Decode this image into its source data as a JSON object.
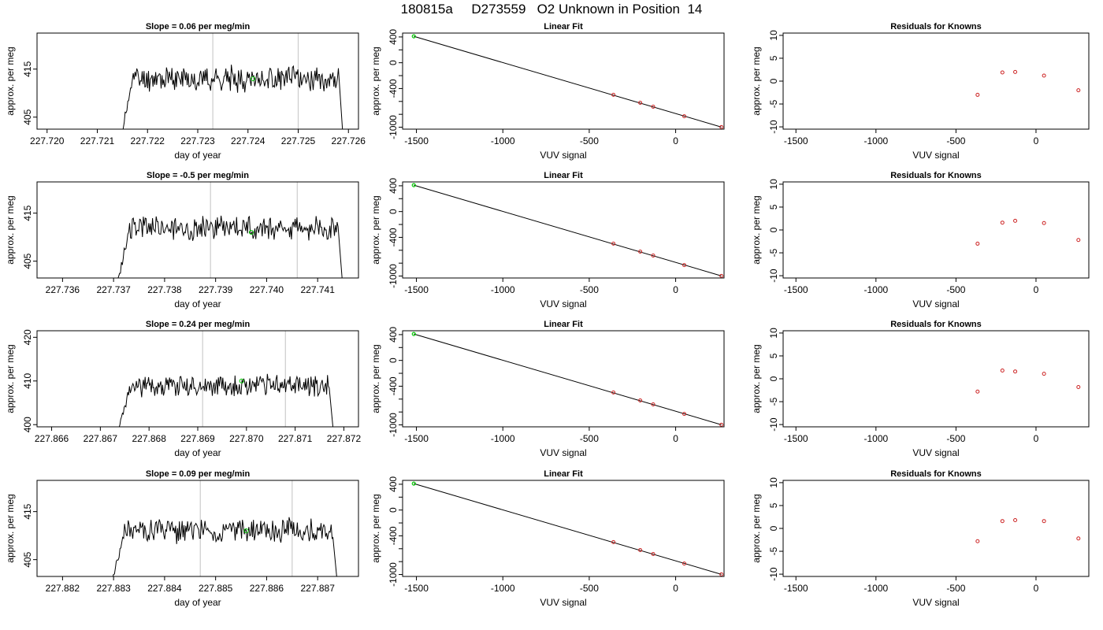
{
  "figure_title": "180815a     D273559   O2 Unknown in Position  14",
  "colors": {
    "trace": "#000000",
    "unknown_point": "#00cc00",
    "known_point": "#cc2222",
    "run_marker": "#cccccc",
    "fit_line": "#000000"
  },
  "chart_data": [
    {
      "type": "line",
      "row": 0,
      "title": "Slope =  0.06  per meg/min",
      "xlabel": "day of year",
      "ylabel": "approx. per meg",
      "xlim": [
        227.7198,
        227.7262
      ],
      "ylim": [
        402.5,
        422.5
      ],
      "xticks": [
        "227.720",
        "227.721",
        "227.722",
        "227.723",
        "227.724",
        "227.725",
        "227.726"
      ],
      "yticks": [
        "405",
        "415"
      ],
      "x_start": 227.7214,
      "x_end": 227.7259,
      "plateau_start": 227.7215,
      "plateau_end": 227.7258,
      "mean": 413,
      "amplitude": 2.2,
      "seed": 11,
      "markers": [
        227.7233,
        227.725
      ],
      "unknown_point": [
        227.7241,
        413
      ]
    },
    {
      "type": "line",
      "row": 0,
      "title": "Linear Fit",
      "xlabel": "VUV signal",
      "ylabel": "approx. per meg",
      "xlim": [
        -1580,
        280
      ],
      "ylim": [
        -1030,
        460
      ],
      "xticks": [
        "-1500",
        "-1000",
        "-500",
        "0"
      ],
      "yticks": [
        "-1000",
        "-800",
        "-600",
        "-400",
        "-200",
        "0",
        "200",
        "400"
      ],
      "yticks_labeled": [
        "-1000",
        "-400",
        "0",
        "400"
      ],
      "fit": {
        "x": [
          -1515,
          265
        ],
        "y": [
          410,
          -998
        ]
      },
      "unknown_point": [
        -1515,
        410
      ],
      "knowns": {
        "x": [
          -360,
          -205,
          -130,
          50,
          265
        ],
        "y": [
          -497,
          -621,
          -682,
          -830,
          -998
        ]
      }
    },
    {
      "type": "scatter",
      "row": 0,
      "title": "Residuals for Knowns",
      "xlabel": "VUV signal",
      "ylabel": "approx. per meg",
      "xlim": [
        -1580,
        330
      ],
      "ylim": [
        -10.5,
        10.5
      ],
      "xticks": [
        "-1500",
        "-1000",
        "-500",
        "0"
      ],
      "yticks": [
        "-10",
        "-5",
        "0",
        "5",
        "10"
      ],
      "x": [
        -365,
        -210,
        -130,
        50,
        265
      ],
      "y": [
        -3,
        1.9,
        2,
        1.2,
        -2
      ]
    },
    {
      "type": "line",
      "row": 1,
      "title": "Slope =  -0.5  per meg/min",
      "xlabel": "day of year",
      "ylabel": "approx. per meg",
      "xlim": [
        227.7355,
        227.7418
      ],
      "ylim": [
        401.5,
        421.5
      ],
      "xticks": [
        "227.736",
        "227.737",
        "227.738",
        "227.739",
        "227.740",
        "227.741"
      ],
      "yticks": [
        "405",
        "415"
      ],
      "x_start": 227.737,
      "x_end": 227.7415,
      "plateau_start": 227.7371,
      "plateau_end": 227.7414,
      "mean": 412,
      "amplitude": 2.2,
      "seed": 23,
      "markers": [
        227.7389,
        227.7406
      ],
      "unknown_point": [
        227.7397,
        411
      ]
    },
    {
      "type": "line",
      "row": 1,
      "title": "Linear Fit",
      "xlabel": "VUV signal",
      "ylabel": "approx. per meg",
      "xlim": [
        -1580,
        280
      ],
      "ylim": [
        -1030,
        460
      ],
      "xticks": [
        "-1500",
        "-1000",
        "-500",
        "0"
      ],
      "yticks": [
        "-1000",
        "-800",
        "-600",
        "-400",
        "-200",
        "0",
        "200",
        "400"
      ],
      "yticks_labeled": [
        "-1000",
        "-400",
        "0",
        "400"
      ],
      "fit": {
        "x": [
          -1515,
          265
        ],
        "y": [
          410,
          -998
        ]
      },
      "unknown_point": [
        -1515,
        410
      ],
      "knowns": {
        "x": [
          -360,
          -205,
          -130,
          50,
          265
        ],
        "y": [
          -497,
          -621,
          -682,
          -830,
          -998
        ]
      }
    },
    {
      "type": "scatter",
      "row": 1,
      "title": "Residuals for Knowns",
      "xlabel": "VUV signal",
      "ylabel": "approx. per meg",
      "xlim": [
        -1580,
        330
      ],
      "ylim": [
        -10.5,
        10.5
      ],
      "xticks": [
        "-1500",
        "-1000",
        "-500",
        "0"
      ],
      "yticks": [
        "-10",
        "-5",
        "0",
        "5",
        "10"
      ],
      "x": [
        -365,
        -210,
        -130,
        50,
        265
      ],
      "y": [
        -3,
        1.6,
        2,
        1.5,
        -2.2
      ]
    },
    {
      "type": "line",
      "row": 2,
      "title": "Slope =  0.24  per meg/min",
      "xlabel": "day of year",
      "ylabel": "approx. per meg",
      "xlim": [
        227.8657,
        227.8723
      ],
      "ylim": [
        399.5,
        421.5
      ],
      "xticks": [
        "227.866",
        "227.867",
        "227.868",
        "227.869",
        "227.870",
        "227.871",
        "227.872"
      ],
      "yticks": [
        "400",
        "410",
        "420"
      ],
      "x_start": 227.8673,
      "x_end": 227.8718,
      "plateau_start": 227.8674,
      "plateau_end": 227.8717,
      "mean": 409,
      "amplitude": 2.2,
      "seed": 37,
      "markers": [
        227.8691,
        227.8708
      ],
      "unknown_point": [
        227.8699,
        410
      ]
    },
    {
      "type": "line",
      "row": 2,
      "title": "Linear Fit",
      "xlabel": "VUV signal",
      "ylabel": "approx. per meg",
      "xlim": [
        -1580,
        280
      ],
      "ylim": [
        -1030,
        460
      ],
      "xticks": [
        "-1500",
        "-1000",
        "-500",
        "0"
      ],
      "yticks": [
        "-1000",
        "-800",
        "-600",
        "-400",
        "-200",
        "0",
        "200",
        "400"
      ],
      "yticks_labeled": [
        "-1000",
        "-400",
        "0",
        "400"
      ],
      "fit": {
        "x": [
          -1515,
          265
        ],
        "y": [
          410,
          -998
        ]
      },
      "unknown_point": [
        -1515,
        410
      ],
      "knowns": {
        "x": [
          -360,
          -205,
          -130,
          50,
          265
        ],
        "y": [
          -497,
          -621,
          -682,
          -830,
          -998
        ]
      }
    },
    {
      "type": "scatter",
      "row": 2,
      "title": "Residuals for Knowns",
      "xlabel": "VUV signal",
      "ylabel": "approx. per meg",
      "xlim": [
        -1580,
        330
      ],
      "ylim": [
        -10.5,
        10.5
      ],
      "xticks": [
        "-1500",
        "-1000",
        "-500",
        "0"
      ],
      "yticks": [
        "-10",
        "-5",
        "0",
        "5",
        "10"
      ],
      "x": [
        -365,
        -210,
        -130,
        50,
        265
      ],
      "y": [
        -2.8,
        1.8,
        1.6,
        1.1,
        -1.8
      ]
    },
    {
      "type": "line",
      "row": 3,
      "title": "Slope =  0.09  per meg/min",
      "xlabel": "day of year",
      "ylabel": "approx. per meg",
      "xlim": [
        227.8815,
        227.8878
      ],
      "ylim": [
        401.5,
        421.5
      ],
      "xticks": [
        "227.882",
        "227.883",
        "227.884",
        "227.885",
        "227.886",
        "227.887"
      ],
      "yticks": [
        "405",
        "415"
      ],
      "x_start": 227.8829,
      "x_end": 227.8874,
      "plateau_start": 227.883,
      "plateau_end": 227.8873,
      "mean": 411,
      "amplitude": 2.2,
      "seed": 51,
      "markers": [
        227.8847,
        227.8865
      ],
      "unknown_point": [
        227.8856,
        411
      ]
    },
    {
      "type": "line",
      "row": 3,
      "title": "Linear Fit",
      "xlabel": "VUV signal",
      "ylabel": "approx. per meg",
      "xlim": [
        -1580,
        280
      ],
      "ylim": [
        -1030,
        460
      ],
      "xticks": [
        "-1500",
        "-1000",
        "-500",
        "0"
      ],
      "yticks": [
        "-1000",
        "-800",
        "-600",
        "-400",
        "-200",
        "0",
        "200",
        "400"
      ],
      "yticks_labeled": [
        "-1000",
        "-400",
        "0",
        "400"
      ],
      "fit": {
        "x": [
          -1515,
          265
        ],
        "y": [
          410,
          -998
        ]
      },
      "unknown_point": [
        -1515,
        410
      ],
      "knowns": {
        "x": [
          -360,
          -205,
          -130,
          50,
          265
        ],
        "y": [
          -497,
          -621,
          -682,
          -830,
          -998
        ]
      }
    },
    {
      "type": "scatter",
      "row": 3,
      "title": "Residuals for Knowns",
      "xlabel": "VUV signal",
      "ylabel": "approx. per meg",
      "xlim": [
        -1580,
        330
      ],
      "ylim": [
        -10.5,
        10.5
      ],
      "xticks": [
        "-1500",
        "-1000",
        "-500",
        "0"
      ],
      "yticks": [
        "-10",
        "-5",
        "0",
        "5",
        "10"
      ],
      "x": [
        -365,
        -210,
        -130,
        50,
        265
      ],
      "y": [
        -2.8,
        1.6,
        1.8,
        1.6,
        -2.2
      ]
    }
  ]
}
